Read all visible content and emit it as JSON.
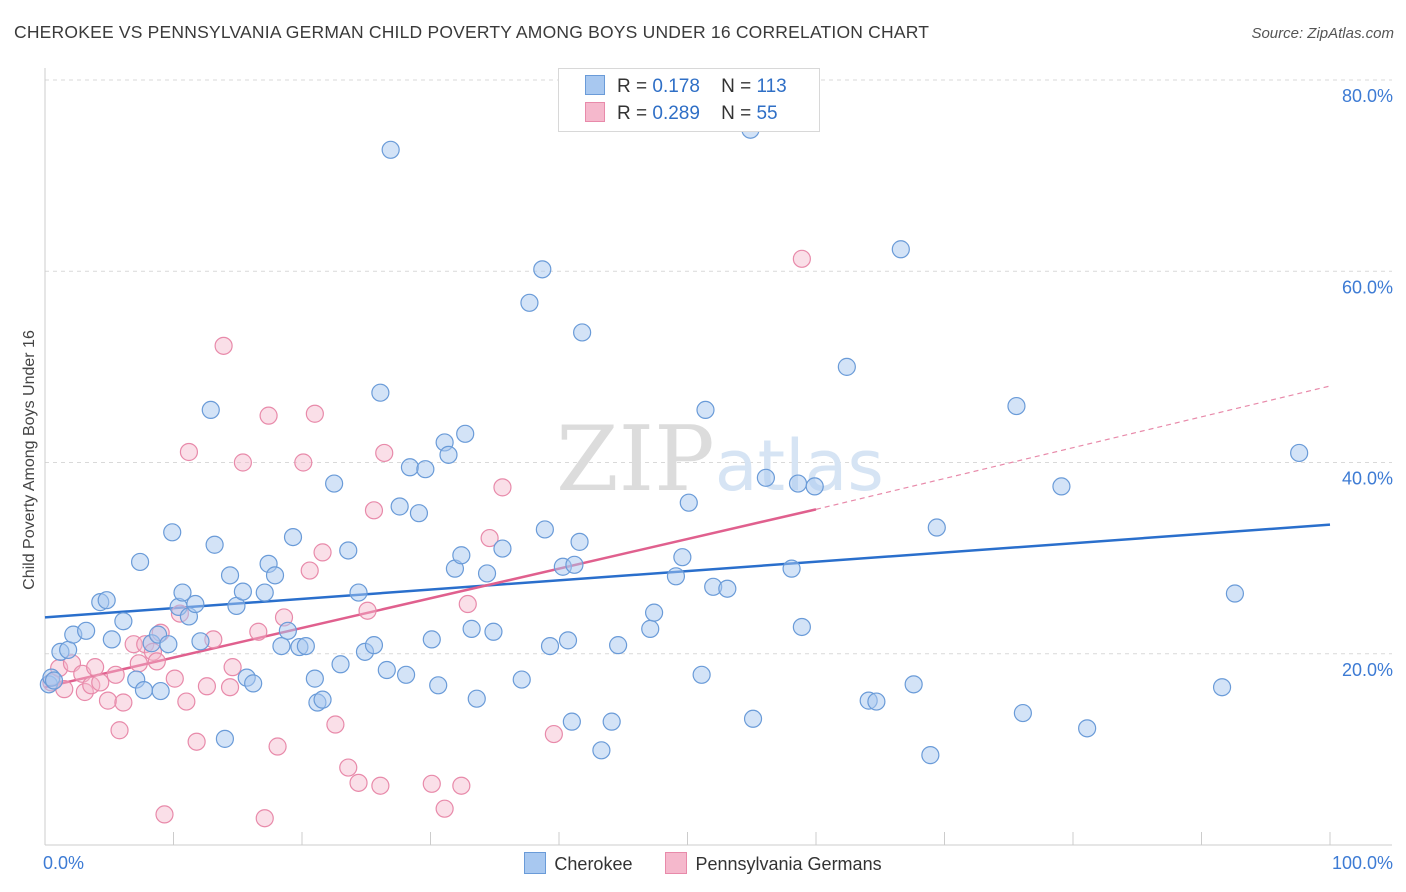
{
  "title": "CHEROKEE VS PENNSYLVANIA GERMAN CHILD POVERTY AMONG BOYS UNDER 16 CORRELATION CHART",
  "source": "Source: ZipAtlas.com",
  "watermark": "ZIPatlas",
  "colors": {
    "cherokee_fill": "#a8c8f0",
    "cherokee_stroke": "#6a9bd8",
    "cherokee_line": "#2a6fcc",
    "penn_fill": "#f5b8cc",
    "penn_stroke": "#e88aaa",
    "penn_line": "#e0608e",
    "axis_label": "#3d7bd4",
    "grid": "#d9d9d9"
  },
  "legend": {
    "rows": [
      {
        "r_label": "R =",
        "r_value": "0.178",
        "n_label": "N =",
        "n_value": "113"
      },
      {
        "r_label": "R =",
        "r_value": "0.289",
        "n_label": "N =",
        "n_value": "55"
      }
    ]
  },
  "bottom_legend": [
    "Cherokee",
    "Pennsylvania Germans"
  ],
  "chart_data": {
    "type": "scatter",
    "title": "CHEROKEE VS PENNSYLVANIA GERMAN CHILD POVERTY AMONG BOYS UNDER 16 CORRELATION CHART",
    "xlabel": "",
    "ylabel": "Child Poverty Among Boys Under 16",
    "xlim": [
      0,
      100
    ],
    "ylim": [
      0,
      80
    ],
    "x_tick_labels": [
      "0.0%",
      "100.0%"
    ],
    "y_ticks": [
      20,
      40,
      60,
      80
    ],
    "y_tick_labels": [
      "20.0%",
      "40.0%",
      "60.0%",
      "80.0%"
    ],
    "grid": true,
    "legend_position": "top-center",
    "series": [
      {
        "name": "Cherokee",
        "r": 0.178,
        "n": 113,
        "trend": {
          "x": [
            0,
            100
          ],
          "y": [
            23.8,
            33.5
          ]
        },
        "points": [
          [
            0.3,
            16.8
          ],
          [
            0.5,
            17.5
          ],
          [
            0.7,
            17.2
          ],
          [
            1.2,
            20.2
          ],
          [
            1.8,
            20.4
          ],
          [
            2.2,
            22.0
          ],
          [
            3.2,
            22.4
          ],
          [
            4.3,
            25.4
          ],
          [
            4.8,
            25.6
          ],
          [
            5.2,
            21.5
          ],
          [
            6.1,
            23.4
          ],
          [
            7.1,
            17.3
          ],
          [
            7.4,
            29.6
          ],
          [
            7.7,
            16.2
          ],
          [
            8.3,
            21.1
          ],
          [
            8.8,
            22.0
          ],
          [
            9.0,
            16.1
          ],
          [
            9.6,
            21.0
          ],
          [
            9.9,
            32.7
          ],
          [
            10.4,
            24.9
          ],
          [
            10.7,
            26.4
          ],
          [
            11.2,
            23.9
          ],
          [
            11.7,
            25.2
          ],
          [
            12.1,
            21.3
          ],
          [
            12.9,
            45.5
          ],
          [
            13.2,
            31.4
          ],
          [
            14.0,
            11.1
          ],
          [
            14.4,
            28.2
          ],
          [
            14.9,
            25.0
          ],
          [
            15.4,
            26.5
          ],
          [
            15.7,
            17.5
          ],
          [
            16.2,
            16.9
          ],
          [
            17.1,
            26.4
          ],
          [
            17.4,
            29.4
          ],
          [
            17.9,
            28.2
          ],
          [
            18.4,
            20.8
          ],
          [
            18.9,
            22.4
          ],
          [
            19.3,
            32.2
          ],
          [
            19.8,
            20.7
          ],
          [
            20.3,
            20.8
          ],
          [
            21.0,
            17.4
          ],
          [
            21.2,
            14.9
          ],
          [
            21.6,
            15.2
          ],
          [
            22.5,
            37.8
          ],
          [
            23.0,
            18.9
          ],
          [
            23.6,
            30.8
          ],
          [
            24.4,
            26.4
          ],
          [
            24.9,
            20.2
          ],
          [
            25.6,
            20.9
          ],
          [
            26.1,
            47.3
          ],
          [
            26.6,
            18.3
          ],
          [
            26.9,
            72.7
          ],
          [
            27.6,
            35.4
          ],
          [
            28.1,
            17.8
          ],
          [
            28.4,
            39.5
          ],
          [
            29.1,
            34.7
          ],
          [
            29.6,
            39.3
          ],
          [
            30.1,
            21.5
          ],
          [
            30.6,
            16.7
          ],
          [
            31.1,
            42.1
          ],
          [
            31.4,
            40.8
          ],
          [
            31.9,
            28.9
          ],
          [
            32.4,
            30.3
          ],
          [
            32.7,
            43.0
          ],
          [
            33.2,
            22.6
          ],
          [
            33.6,
            15.3
          ],
          [
            34.4,
            28.4
          ],
          [
            34.9,
            22.3
          ],
          [
            35.6,
            31.0
          ],
          [
            37.1,
            17.3
          ],
          [
            37.7,
            56.7
          ],
          [
            38.7,
            60.2
          ],
          [
            38.9,
            33.0
          ],
          [
            39.3,
            20.8
          ],
          [
            40.3,
            29.1
          ],
          [
            40.7,
            21.4
          ],
          [
            41.0,
            12.9
          ],
          [
            41.2,
            29.3
          ],
          [
            41.6,
            31.7
          ],
          [
            41.8,
            53.6
          ],
          [
            43.3,
            9.9
          ],
          [
            44.1,
            12.9
          ],
          [
            44.6,
            20.9
          ],
          [
            47.1,
            22.6
          ],
          [
            47.4,
            24.3
          ],
          [
            49.1,
            28.1
          ],
          [
            49.6,
            30.1
          ],
          [
            50.1,
            35.8
          ],
          [
            51.1,
            17.8
          ],
          [
            51.4,
            45.5
          ],
          [
            52.0,
            27.0
          ],
          [
            53.1,
            26.8
          ],
          [
            54.9,
            74.8
          ],
          [
            55.1,
            13.2
          ],
          [
            56.1,
            38.4
          ],
          [
            58.1,
            28.9
          ],
          [
            58.6,
            37.8
          ],
          [
            58.9,
            22.8
          ],
          [
            59.9,
            37.5
          ],
          [
            62.4,
            50.0
          ],
          [
            64.1,
            15.1
          ],
          [
            64.7,
            15.0
          ],
          [
            66.6,
            62.3
          ],
          [
            67.6,
            16.8
          ],
          [
            68.9,
            9.4
          ],
          [
            69.4,
            33.2
          ],
          [
            75.6,
            45.9
          ],
          [
            76.1,
            13.8
          ],
          [
            79.1,
            37.5
          ],
          [
            81.1,
            12.2
          ],
          [
            91.6,
            16.5
          ],
          [
            92.6,
            26.3
          ],
          [
            97.6,
            41.0
          ]
        ]
      },
      {
        "name": "Pennsylvania Germans",
        "r": 0.289,
        "n": 55,
        "trend": {
          "x": [
            0,
            60
          ],
          "y": [
            16.5,
            35.1
          ]
        },
        "trend_dashed": {
          "x": [
            60,
            100
          ],
          "y": [
            35.1,
            48.0
          ]
        },
        "points": [
          [
            0.5,
            17.0
          ],
          [
            1.1,
            18.5
          ],
          [
            1.5,
            16.3
          ],
          [
            2.1,
            19.0
          ],
          [
            2.9,
            17.9
          ],
          [
            3.1,
            16.0
          ],
          [
            3.6,
            16.7
          ],
          [
            3.9,
            18.6
          ],
          [
            4.3,
            17.0
          ],
          [
            4.9,
            15.1
          ],
          [
            5.5,
            17.8
          ],
          [
            5.8,
            12.0
          ],
          [
            6.1,
            14.9
          ],
          [
            6.9,
            21.0
          ],
          [
            7.3,
            19.0
          ],
          [
            7.8,
            21.0
          ],
          [
            8.4,
            20.2
          ],
          [
            8.7,
            19.2
          ],
          [
            9.0,
            22.2
          ],
          [
            9.3,
            3.2
          ],
          [
            10.1,
            17.4
          ],
          [
            10.5,
            24.2
          ],
          [
            11.0,
            15.0
          ],
          [
            11.2,
            41.1
          ],
          [
            11.8,
            10.8
          ],
          [
            12.6,
            16.6
          ],
          [
            13.1,
            21.5
          ],
          [
            13.9,
            52.2
          ],
          [
            14.4,
            16.5
          ],
          [
            14.6,
            18.6
          ],
          [
            15.4,
            40.0
          ],
          [
            16.6,
            22.3
          ],
          [
            17.1,
            2.8
          ],
          [
            17.4,
            44.9
          ],
          [
            18.1,
            10.3
          ],
          [
            18.6,
            23.8
          ],
          [
            20.1,
            40.0
          ],
          [
            20.6,
            28.7
          ],
          [
            21.0,
            45.1
          ],
          [
            21.6,
            30.6
          ],
          [
            22.6,
            12.6
          ],
          [
            23.6,
            8.1
          ],
          [
            24.4,
            6.5
          ],
          [
            25.1,
            24.5
          ],
          [
            25.6,
            35.0
          ],
          [
            26.1,
            6.2
          ],
          [
            26.4,
            41.0
          ],
          [
            30.1,
            6.4
          ],
          [
            31.1,
            3.8
          ],
          [
            32.4,
            6.2
          ],
          [
            32.9,
            25.2
          ],
          [
            34.6,
            32.1
          ],
          [
            35.6,
            37.4
          ],
          [
            39.6,
            11.6
          ],
          [
            58.9,
            61.3
          ]
        ]
      }
    ]
  }
}
